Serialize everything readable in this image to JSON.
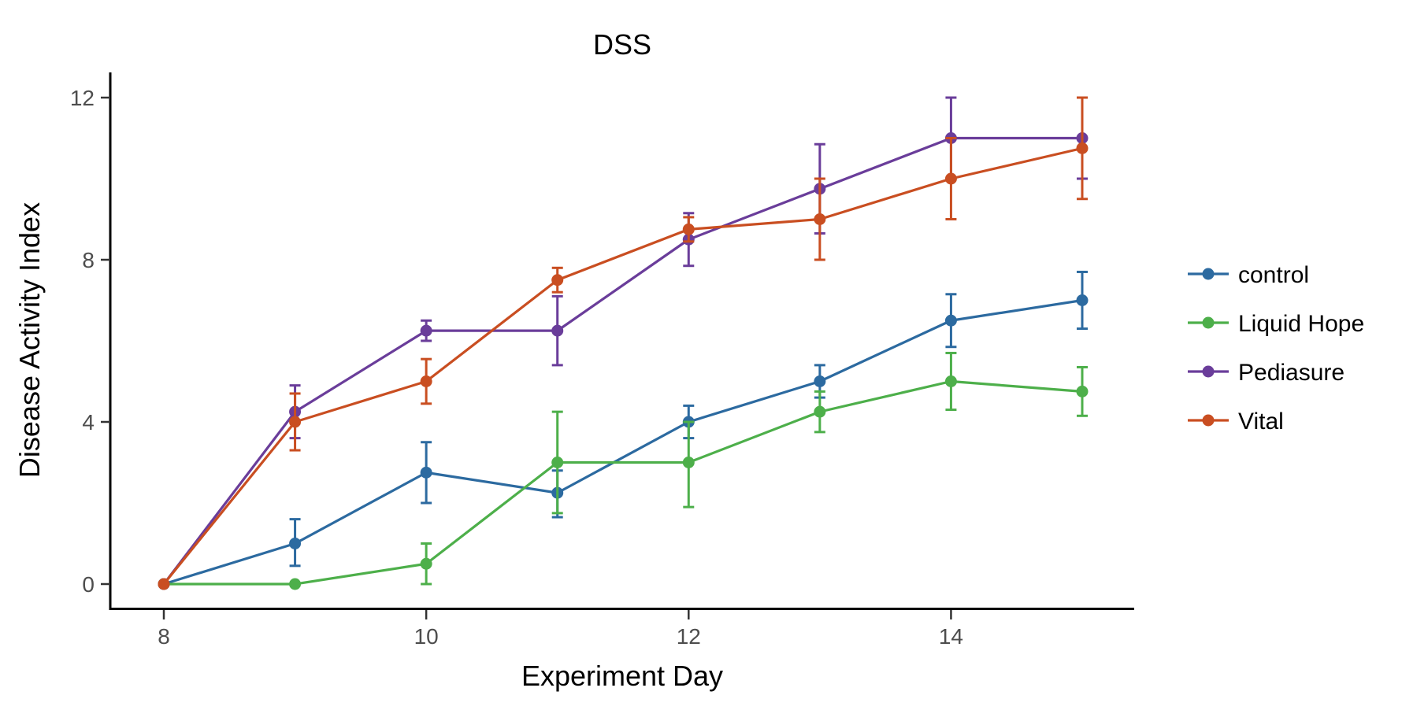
{
  "chart_data": {
    "type": "line",
    "title": "DSS",
    "xlabel": "Experiment Day",
    "ylabel": "Disease Activity Index",
    "xlim": [
      7.6,
      15.4
    ],
    "ylim": [
      -0.6,
      12.6
    ],
    "xticks": [
      8,
      10,
      12,
      14
    ],
    "yticks": [
      0,
      4,
      8,
      12
    ],
    "grid": false,
    "legend_position": "right",
    "x": [
      8,
      9,
      10,
      11,
      12,
      13,
      14,
      15
    ],
    "series": [
      {
        "name": "control",
        "color": "#2c6aa0",
        "values": [
          0,
          1.0,
          2.75,
          2.25,
          4.0,
          5.0,
          6.5,
          7.0
        ],
        "err_low": [
          0,
          0.45,
          2.0,
          1.65,
          3.6,
          4.6,
          5.85,
          6.3
        ],
        "err_high": [
          0,
          1.6,
          3.5,
          2.8,
          4.4,
          5.4,
          7.15,
          7.7
        ]
      },
      {
        "name": "Liquid Hope",
        "color": "#4daf4a",
        "values": [
          0,
          0,
          0.5,
          3.0,
          3.0,
          4.25,
          5.0,
          4.75
        ],
        "err_low": [
          0,
          0,
          0,
          1.75,
          1.9,
          3.75,
          4.3,
          4.15
        ],
        "err_high": [
          0,
          0,
          1.0,
          4.25,
          4.0,
          4.75,
          5.7,
          5.35
        ]
      },
      {
        "name": "Pediasure",
        "color": "#6a3d9a",
        "values": [
          0,
          4.25,
          6.25,
          6.25,
          8.5,
          9.75,
          11.0,
          11.0
        ],
        "err_low": [
          0,
          3.6,
          6.0,
          5.4,
          7.85,
          8.65,
          10.0,
          10.0
        ],
        "err_high": [
          0,
          4.9,
          6.5,
          7.1,
          9.15,
          10.85,
          12.0,
          12.0
        ]
      },
      {
        "name": "Vital",
        "color": "#c94e21",
        "values": [
          0,
          4.0,
          5.0,
          7.5,
          8.75,
          9.0,
          10.0,
          10.75
        ],
        "err_low": [
          0,
          3.3,
          4.45,
          7.2,
          8.45,
          8.0,
          9.0,
          9.5
        ],
        "err_high": [
          0,
          4.7,
          5.55,
          7.8,
          9.05,
          10.0,
          11.0,
          12.0
        ]
      }
    ]
  }
}
